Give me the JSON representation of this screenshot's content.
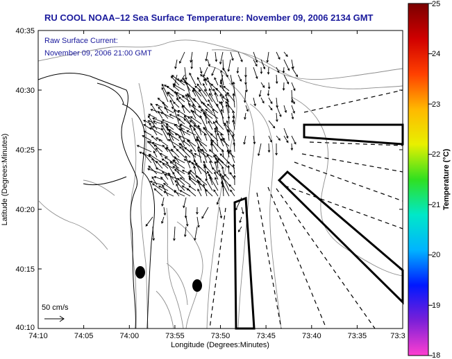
{
  "title": "RU COOL  NOAA–12  Sea Surface Temperature:  November 09, 2006 2134 GMT",
  "subtitle_line1": "Raw Surface Current:",
  "subtitle_line2": "November 09, 2006 21:00 GMT",
  "scale_label": "50 cm/s",
  "colorbar": {
    "label": "Temperature (°C)",
    "ticks": [
      "25",
      "24",
      "23",
      "22",
      "21",
      "20",
      "19",
      "18"
    ],
    "min": 18,
    "max": 25,
    "colors": [
      "#ff3fd0",
      "#7a1fd8",
      "#0018ff",
      "#00b4ff",
      "#00e8c8",
      "#30e020",
      "#e8f000",
      "#ffb800",
      "#ff4000",
      "#d00000",
      "#7a0000"
    ]
  },
  "axes": {
    "xlabel": "Longitude (Degrees:Minutes)",
    "ylabel": "Latitude (Degrees:Minutes)",
    "x_ticks": [
      "74:10",
      "74:05",
      "74:00",
      "73:55",
      "73:50",
      "73:45",
      "73:40",
      "73:35",
      "73:3"
    ],
    "y_ticks": [
      "40:35",
      "40:30",
      "40:25",
      "40:20",
      "40:15",
      "40:10"
    ]
  },
  "map": {
    "land_color": "#ffffff",
    "coast_color": "#000000",
    "bathymetry_color": "#8c8c8c"
  }
}
